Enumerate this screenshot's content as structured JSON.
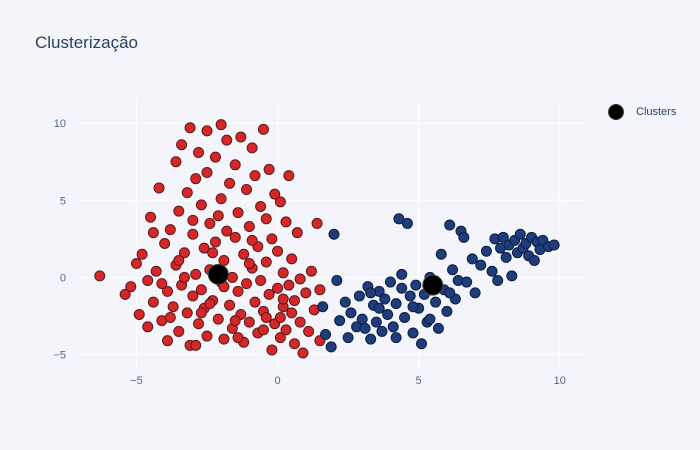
{
  "chart_data": {
    "type": "scatter",
    "title": "Clusterização",
    "xlabel": "",
    "ylabel": "",
    "xlim": [
      -7,
      11
    ],
    "ylim": [
      -6,
      11.5
    ],
    "x_ticks": [
      -5,
      0,
      5,
      10
    ],
    "y_ticks": [
      -5,
      0,
      5,
      10
    ],
    "grid": true,
    "legend": "top-right",
    "colors": {
      "cluster_a": "#d62728",
      "cluster_b": "#1f3d7a",
      "centroid": "#000000",
      "grid": "#ffffff",
      "background": "#f4f5fa"
    },
    "series": [
      {
        "points": [
          [
            -6.3,
            0.1
          ],
          [
            -5.4,
            -1.1
          ],
          [
            -5.2,
            -0.6
          ],
          [
            -5.0,
            0.9
          ],
          [
            -4.9,
            -2.4
          ],
          [
            -4.8,
            1.5
          ],
          [
            -4.6,
            -0.2
          ],
          [
            -4.6,
            -3.2
          ],
          [
            -4.5,
            3.9
          ],
          [
            -4.4,
            -1.6
          ],
          [
            -4.3,
            0.4
          ],
          [
            -4.2,
            5.8
          ],
          [
            -4.1,
            -2.8
          ],
          [
            -4.0,
            2.2
          ],
          [
            -3.9,
            -0.9
          ],
          [
            -3.9,
            -4.1
          ],
          [
            -3.8,
            3.1
          ],
          [
            -3.7,
            -1.9
          ],
          [
            -3.6,
            0.8
          ],
          [
            -3.6,
            7.5
          ],
          [
            -3.5,
            -3.5
          ],
          [
            -3.5,
            4.3
          ],
          [
            -3.4,
            -0.5
          ],
          [
            -3.4,
            8.6
          ],
          [
            -3.3,
            1.6
          ],
          [
            -3.2,
            -2.3
          ],
          [
            -3.2,
            5.5
          ],
          [
            -3.1,
            -4.4
          ],
          [
            -3.1,
            9.7
          ],
          [
            -3.0,
            2.8
          ],
          [
            -3.0,
            -1.2
          ],
          [
            -2.9,
            6.4
          ],
          [
            -2.9,
            0.2
          ],
          [
            -2.8,
            -3.0
          ],
          [
            -2.8,
            8.1
          ],
          [
            -2.7,
            4.7
          ],
          [
            -2.7,
            -0.8
          ],
          [
            -2.6,
            1.9
          ],
          [
            -2.6,
            -2.0
          ],
          [
            -2.5,
            9.5
          ],
          [
            -2.5,
            6.8
          ],
          [
            -2.5,
            -3.8
          ],
          [
            -2.4,
            3.5
          ],
          [
            -2.4,
            0.5
          ],
          [
            -2.3,
            -1.5
          ],
          [
            -2.2,
            7.8
          ],
          [
            -2.2,
            2.3
          ],
          [
            -2.1,
            -2.7
          ],
          [
            -2.0,
            5.1
          ],
          [
            -2.0,
            -0.3
          ],
          [
            -2.0,
            9.9
          ],
          [
            -1.9,
            -4.0
          ],
          [
            -1.9,
            1.1
          ],
          [
            -1.8,
            8.9
          ],
          [
            -1.8,
            3.0
          ],
          [
            -1.7,
            -1.8
          ],
          [
            -1.7,
            6.1
          ],
          [
            -1.6,
            -3.3
          ],
          [
            -1.6,
            0.0
          ],
          [
            -1.5,
            2.6
          ],
          [
            -1.5,
            7.3
          ],
          [
            -1.4,
            -0.9
          ],
          [
            -1.4,
            4.2
          ],
          [
            -1.3,
            -2.4
          ],
          [
            -1.3,
            9.1
          ],
          [
            -1.2,
            1.5
          ],
          [
            -1.2,
            -4.2
          ],
          [
            -1.1,
            5.7
          ],
          [
            -1.1,
            -0.4
          ],
          [
            -1.0,
            3.3
          ],
          [
            -1.0,
            -2.9
          ],
          [
            -0.9,
            8.4
          ],
          [
            -0.9,
            0.6
          ],
          [
            -0.8,
            -1.6
          ],
          [
            -0.8,
            6.6
          ],
          [
            -0.7,
            2.0
          ],
          [
            -0.7,
            -3.6
          ],
          [
            -0.6,
            4.6
          ],
          [
            -0.6,
            -0.2
          ],
          [
            -0.5,
            9.6
          ],
          [
            -0.5,
            -2.2
          ],
          [
            -0.4,
            3.8
          ],
          [
            -0.4,
            1.0
          ],
          [
            -0.3,
            -1.1
          ],
          [
            -0.3,
            7.0
          ],
          [
            -0.2,
            -4.7
          ],
          [
            -0.2,
            2.5
          ],
          [
            -0.1,
            5.4
          ],
          [
            -0.1,
            -3.0
          ],
          [
            0.0,
            -0.7
          ],
          [
            0.0,
            1.7
          ],
          [
            0.1,
            -2.6
          ],
          [
            0.1,
            4.9
          ],
          [
            0.2,
            -1.9
          ],
          [
            0.2,
            0.3
          ],
          [
            0.3,
            -3.4
          ],
          [
            0.3,
            3.6
          ],
          [
            0.4,
            -0.5
          ],
          [
            0.4,
            6.6
          ],
          [
            0.5,
            -2.3
          ],
          [
            0.5,
            1.2
          ],
          [
            0.6,
            -4.3
          ],
          [
            0.6,
            -1.5
          ],
          [
            0.7,
            2.9
          ],
          [
            0.8,
            -0.1
          ],
          [
            0.8,
            -2.9
          ],
          [
            0.9,
            -4.9
          ],
          [
            1.0,
            -1.0
          ],
          [
            1.1,
            -3.5
          ],
          [
            1.2,
            0.4
          ],
          [
            1.3,
            -2.1
          ],
          [
            1.4,
            3.5
          ],
          [
            1.5,
            -4.1
          ],
          [
            1.5,
            -0.8
          ],
          [
            -4.4,
            2.9
          ],
          [
            -3.8,
            -2.6
          ],
          [
            -3.3,
            0.0
          ],
          [
            -2.9,
            -4.4
          ],
          [
            -2.3,
            1.6
          ],
          [
            -1.9,
            -0.6
          ],
          [
            -1.4,
            -3.9
          ],
          [
            -0.9,
            2.4
          ],
          [
            -0.4,
            -2.6
          ],
          [
            0.1,
            -3.9
          ],
          [
            -4.1,
            -0.4
          ],
          [
            -3.5,
            1.1
          ],
          [
            -2.7,
            -2.3
          ],
          [
            -2.1,
            4.0
          ],
          [
            -1.5,
            -2.8
          ],
          [
            -1.0,
            0.9
          ],
          [
            -0.5,
            -3.4
          ],
          [
            0.2,
            -1.4
          ],
          [
            -3.0,
            3.7
          ],
          [
            -2.4,
            -1.7
          ]
        ]
      },
      {
        "points": [
          [
            1.6,
            -1.9
          ],
          [
            1.7,
            -3.7
          ],
          [
            1.9,
            -4.5
          ],
          [
            2.0,
            2.8
          ],
          [
            2.1,
            -0.2
          ],
          [
            2.2,
            -2.8
          ],
          [
            2.4,
            -1.6
          ],
          [
            2.5,
            -3.9
          ],
          [
            2.6,
            -2.3
          ],
          [
            2.8,
            -3.2
          ],
          [
            2.9,
            -1.2
          ],
          [
            3.0,
            -2.7
          ],
          [
            3.2,
            -0.6
          ],
          [
            3.3,
            -4.0
          ],
          [
            3.4,
            -1.8
          ],
          [
            3.5,
            -2.9
          ],
          [
            3.6,
            -0.9
          ],
          [
            3.7,
            -3.5
          ],
          [
            3.8,
            -1.4
          ],
          [
            3.9,
            -2.4
          ],
          [
            4.0,
            -0.3
          ],
          [
            4.1,
            -3.2
          ],
          [
            4.2,
            -1.7
          ],
          [
            4.3,
            3.8
          ],
          [
            4.4,
            -0.7
          ],
          [
            4.5,
            -2.6
          ],
          [
            4.6,
            3.5
          ],
          [
            4.7,
            -1.2
          ],
          [
            4.8,
            -3.6
          ],
          [
            4.9,
            -0.5
          ],
          [
            5.0,
            -2.0
          ],
          [
            5.1,
            -4.3
          ],
          [
            5.2,
            -1.1
          ],
          [
            5.3,
            -2.9
          ],
          [
            5.4,
            0.0
          ],
          [
            5.6,
            -1.6
          ],
          [
            5.7,
            -3.3
          ],
          [
            5.8,
            1.5
          ],
          [
            5.9,
            -0.8
          ],
          [
            6.0,
            -2.2
          ],
          [
            6.1,
            3.4
          ],
          [
            6.2,
            0.5
          ],
          [
            6.3,
            -1.4
          ],
          [
            6.4,
            -0.2
          ],
          [
            6.5,
            3.0
          ],
          [
            6.6,
            2.6
          ],
          [
            6.7,
            -0.3
          ],
          [
            6.9,
            1.2
          ],
          [
            7.0,
            -1.0
          ],
          [
            7.2,
            0.8
          ],
          [
            7.4,
            1.7
          ],
          [
            7.6,
            0.4
          ],
          [
            7.7,
            2.5
          ],
          [
            7.8,
            -0.2
          ],
          [
            7.9,
            1.9
          ],
          [
            8.0,
            2.6
          ],
          [
            8.1,
            1.3
          ],
          [
            8.2,
            2.1
          ],
          [
            8.3,
            0.1
          ],
          [
            8.4,
            2.4
          ],
          [
            8.5,
            1.6
          ],
          [
            8.6,
            2.8
          ],
          [
            8.7,
            1.9
          ],
          [
            8.8,
            2.2
          ],
          [
            8.9,
            1.4
          ],
          [
            9.0,
            2.6
          ],
          [
            9.1,
            1.1
          ],
          [
            9.2,
            2.3
          ],
          [
            9.3,
            1.8
          ],
          [
            9.4,
            2.4
          ],
          [
            9.6,
            2.0
          ],
          [
            9.8,
            2.1
          ],
          [
            3.1,
            -3.3
          ],
          [
            3.6,
            -2.0
          ],
          [
            4.2,
            -3.9
          ],
          [
            4.8,
            -1.9
          ],
          [
            5.4,
            -2.7
          ],
          [
            6.1,
            -1.0
          ],
          [
            4.4,
            0.2
          ],
          [
            3.3,
            -1.0
          ]
        ]
      },
      {
        "name": "Clusters",
        "points": [
          [
            -2.1,
            0.2
          ],
          [
            5.5,
            -0.5
          ]
        ]
      }
    ]
  },
  "legend": {
    "label": "Clusters"
  }
}
